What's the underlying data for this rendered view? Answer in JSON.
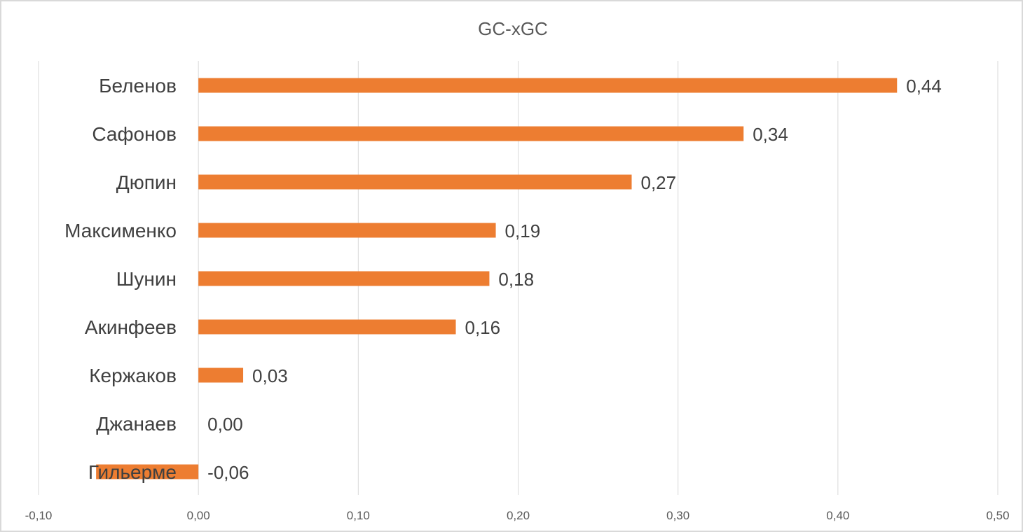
{
  "chart_data": {
    "type": "bar",
    "orientation": "horizontal",
    "title": "GC-xGC",
    "categories": [
      "Беленов",
      "Сафонов",
      "Дюпин",
      "Максименко",
      "Шунин",
      "Акинфеев",
      "Кержаков",
      "Джанаев",
      "Гильерме"
    ],
    "values": [
      0.437,
      0.341,
      0.271,
      0.186,
      0.182,
      0.161,
      0.028,
      0.0,
      -0.064
    ],
    "value_labels": [
      "0,44",
      "0,34",
      "0,27",
      "0,19",
      "0,18",
      "0,16",
      "0,03",
      "0,00",
      "-0,06"
    ],
    "xlim": [
      -0.1,
      0.5
    ],
    "xticks": [
      -0.1,
      0.0,
      0.1,
      0.2,
      0.3,
      0.4,
      0.5
    ],
    "xtick_labels": [
      "-0,10",
      "0,00",
      "0,10",
      "0,20",
      "0,30",
      "0,40",
      "0,50"
    ],
    "bar_color": "#ED7D31",
    "grid": true,
    "legend": "none"
  }
}
